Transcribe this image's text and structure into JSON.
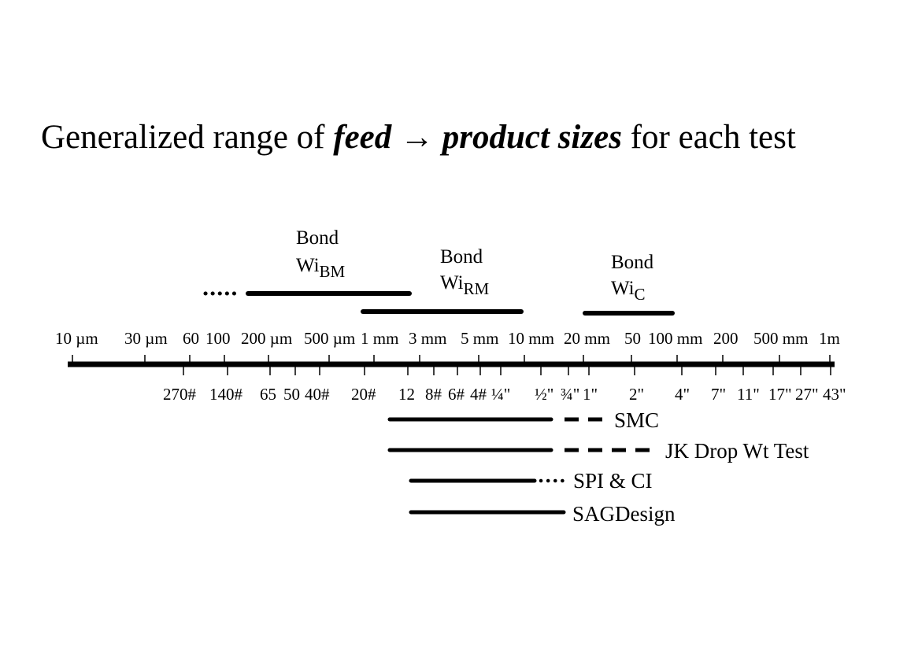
{
  "title": {
    "prefix": "Generalized range of ",
    "feed": "feed",
    "arrow": " → ",
    "product": "product sizes",
    "suffix": " for each test"
  },
  "top_scale_labels": [
    "10 µm",
    "30 µm",
    "60",
    "100",
    "200 µm",
    "500 µm",
    "1 mm",
    "3 mm",
    "5 mm",
    "10 mm",
    "20 mm",
    "50",
    "100 mm",
    "200",
    "500 mm",
    "1m"
  ],
  "bottom_scale_labels": [
    "270#",
    "140#",
    "65",
    "50",
    "40#",
    "20#",
    "12",
    "8#",
    "6#",
    "4#",
    "¼\"",
    "½\"",
    "¾\"",
    "1\"",
    "2\"",
    "4\"",
    "7\"",
    "11\"",
    "17\"",
    "27\"",
    "43\""
  ],
  "bond_tests": [
    {
      "name": "Bond",
      "sub_base": "Wi",
      "sub": "BM"
    },
    {
      "name": "Bond",
      "sub_base": "Wi",
      "sub": "RM"
    },
    {
      "name": "Bond",
      "sub_base": "Wi",
      "sub": "C"
    }
  ],
  "tests": [
    {
      "label": "SMC"
    },
    {
      "label": "JK Drop Wt Test"
    },
    {
      "label": "SPI & CI"
    },
    {
      "label": "SAGDesign"
    }
  ]
}
